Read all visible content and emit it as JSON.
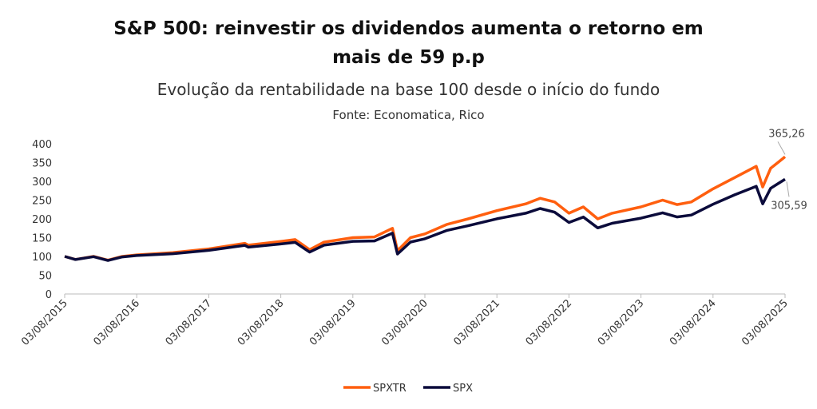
{
  "chart_data": {
    "type": "line",
    "title_line1": "S&P 500: reinvestir os dividendos aumenta o retorno em",
    "title_line2": "mais de 59 p.p",
    "subtitle": "Evolução da rentabilidade na base 100 desde o início do fundo",
    "source": "Fonte: Economatica, Rico",
    "ylim": [
      0,
      400
    ],
    "yticks": [
      "0",
      "50",
      "100",
      "150",
      "200",
      "250",
      "300",
      "350",
      "400"
    ],
    "xticks": [
      "03/08/2015",
      "03/08/2016",
      "03/08/2017",
      "03/08/2018",
      "03/08/2019",
      "03/08/2020",
      "03/08/2021",
      "03/08/2022",
      "03/08/2023",
      "03/08/2024",
      "03/08/2025"
    ],
    "x_unit": "years since 03/08/2015",
    "legend": "bottom",
    "series": [
      {
        "name": "SPXTR",
        "color": "#FF5F0F",
        "end_label": "365,26",
        "points": [
          [
            0,
            100
          ],
          [
            0.15,
            92
          ],
          [
            0.4,
            100
          ],
          [
            0.6,
            90
          ],
          [
            0.8,
            100
          ],
          [
            1.0,
            104
          ],
          [
            1.5,
            110
          ],
          [
            2.0,
            120
          ],
          [
            2.5,
            135
          ],
          [
            2.55,
            130
          ],
          [
            3.0,
            140
          ],
          [
            3.2,
            145
          ],
          [
            3.4,
            118
          ],
          [
            3.6,
            138
          ],
          [
            4.0,
            150
          ],
          [
            4.3,
            152
          ],
          [
            4.55,
            175
          ],
          [
            4.62,
            115
          ],
          [
            4.8,
            150
          ],
          [
            5.0,
            160
          ],
          [
            5.3,
            185
          ],
          [
            5.6,
            200
          ],
          [
            6.0,
            222
          ],
          [
            6.4,
            240
          ],
          [
            6.6,
            255
          ],
          [
            6.8,
            245
          ],
          [
            7.0,
            215
          ],
          [
            7.2,
            232
          ],
          [
            7.4,
            200
          ],
          [
            7.6,
            215
          ],
          [
            8.0,
            232
          ],
          [
            8.3,
            250
          ],
          [
            8.5,
            238
          ],
          [
            8.7,
            245
          ],
          [
            9.0,
            280
          ],
          [
            9.3,
            310
          ],
          [
            9.6,
            340
          ],
          [
            9.69,
            285
          ],
          [
            9.8,
            335
          ],
          [
            9.9,
            350
          ],
          [
            10,
            365.26
          ]
        ]
      },
      {
        "name": "SPX",
        "color": "#0B0B3B",
        "end_label": "305,59",
        "points": [
          [
            0,
            100
          ],
          [
            0.15,
            91.8
          ],
          [
            0.4,
            99.3
          ],
          [
            0.6,
            89.1
          ],
          [
            0.8,
            98.7
          ],
          [
            1.0,
            102.3
          ],
          [
            1.5,
            107.3
          ],
          [
            2.0,
            116.1
          ],
          [
            2.5,
            129.5
          ],
          [
            2.55,
            124.6
          ],
          [
            3.0,
            133.2
          ],
          [
            3.2,
            137.4
          ],
          [
            3.4,
            111.5
          ],
          [
            3.6,
            129.9
          ],
          [
            4.0,
            140.2
          ],
          [
            4.3,
            141.3
          ],
          [
            4.55,
            162
          ],
          [
            4.62,
            106.3
          ],
          [
            4.8,
            138.3
          ],
          [
            5.0,
            147
          ],
          [
            5.3,
            169
          ],
          [
            5.6,
            181.7
          ],
          [
            6.0,
            200.3
          ],
          [
            6.4,
            215
          ],
          [
            6.6,
            227.6
          ],
          [
            6.8,
            217.8
          ],
          [
            7.0,
            190.5
          ],
          [
            7.2,
            204.8
          ],
          [
            7.4,
            175.9
          ],
          [
            7.6,
            188.4
          ],
          [
            8.0,
            202
          ],
          [
            8.3,
            216.2
          ],
          [
            8.5,
            205
          ],
          [
            8.7,
            210.3
          ],
          [
            9.0,
            238.9
          ],
          [
            9.3,
            264
          ],
          [
            9.6,
            286.8
          ],
          [
            9.69,
            240
          ],
          [
            9.8,
            281.5
          ],
          [
            9.9,
            293.6
          ],
          [
            10,
            305.59
          ]
        ]
      }
    ]
  }
}
